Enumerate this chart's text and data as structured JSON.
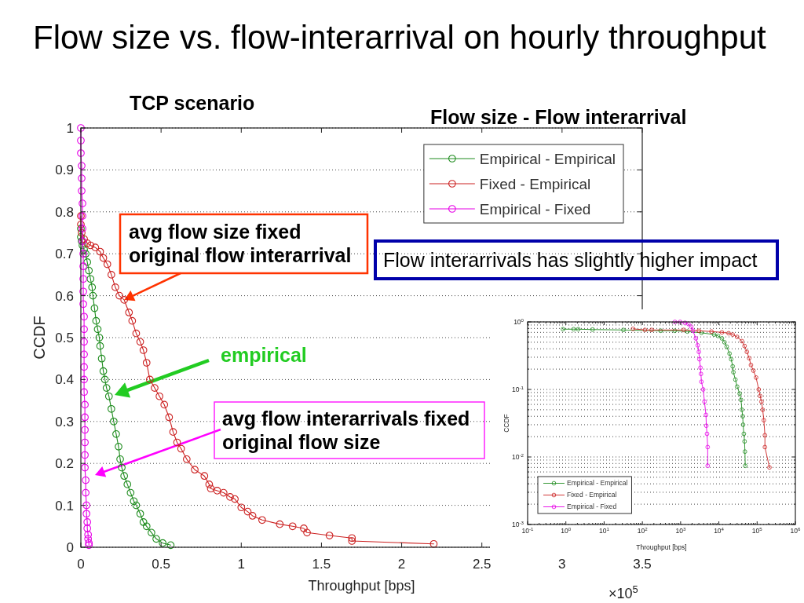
{
  "chart_data": [
    {
      "type": "line",
      "title": "Flow size vs. flow-interarrival on hourly throughput",
      "subtitle": "TCP scenario",
      "xlabel": "Throughput [bps]",
      "ylabel": "CCDF",
      "xlim": [
        0,
        3.5
      ],
      "xticks": [
        0,
        0.5,
        1,
        1.5,
        2,
        2.5,
        3,
        3.5
      ],
      "ylim": [
        0,
        1
      ],
      "yticks": [
        0,
        0.1,
        0.2,
        0.3,
        0.4,
        0.5,
        0.6,
        0.7,
        0.8,
        0.9,
        1
      ],
      "grid": "y",
      "legend": "top right",
      "marker": "circle",
      "line_style": "solid",
      "series": [
        {
          "name": "Empirical - Empirical",
          "color": "#1e8c1e",
          "x": [
            0,
            0,
            0.005,
            0.01,
            0.02,
            0.03,
            0.04,
            0.05,
            0.06,
            0.07,
            0.075,
            0.085,
            0.095,
            0.105,
            0.115,
            0.12,
            0.13,
            0.14,
            0.15,
            0.16,
            0.175,
            0.19,
            0.205,
            0.22,
            0.235,
            0.245,
            0.255,
            0.27,
            0.29,
            0.31,
            0.33,
            0.345,
            0.37,
            0.39,
            0.41,
            0.44,
            0.47,
            0.51,
            0.56
          ],
          "values": [
            0.76,
            0.74,
            0.73,
            0.72,
            0.71,
            0.7,
            0.68,
            0.66,
            0.64,
            0.62,
            0.6,
            0.57,
            0.54,
            0.52,
            0.5,
            0.48,
            0.45,
            0.42,
            0.4,
            0.38,
            0.36,
            0.33,
            0.3,
            0.27,
            0.24,
            0.21,
            0.19,
            0.17,
            0.15,
            0.13,
            0.11,
            0.1,
            0.08,
            0.06,
            0.05,
            0.035,
            0.02,
            0.01,
            0.005
          ]
        },
        {
          "name": "Fixed - Empirical",
          "color": "#cc2222",
          "x": [
            0,
            0,
            0.005,
            0.02,
            0.04,
            0.06,
            0.09,
            0.12,
            0.14,
            0.165,
            0.19,
            0.215,
            0.24,
            0.27,
            0.3,
            0.32,
            0.345,
            0.37,
            0.39,
            0.41,
            0.43,
            0.46,
            0.49,
            0.52,
            0.55,
            0.575,
            0.6,
            0.625,
            0.66,
            0.71,
            0.77,
            0.8,
            0.81,
            0.85,
            0.89,
            0.93,
            0.96,
            1,
            1.04,
            1.07,
            1.13,
            1.24,
            1.32,
            1.39,
            1.41,
            1.55,
            1.69,
            1.69,
            2.2
          ],
          "values": [
            0.79,
            0.77,
            0.75,
            0.735,
            0.725,
            0.72,
            0.715,
            0.705,
            0.69,
            0.675,
            0.65,
            0.62,
            0.6,
            0.59,
            0.56,
            0.54,
            0.51,
            0.49,
            0.47,
            0.44,
            0.4,
            0.38,
            0.36,
            0.34,
            0.31,
            0.275,
            0.25,
            0.235,
            0.21,
            0.185,
            0.17,
            0.15,
            0.14,
            0.135,
            0.13,
            0.12,
            0.115,
            0.095,
            0.085,
            0.075,
            0.065,
            0.055,
            0.05,
            0.045,
            0.035,
            0.028,
            0.022,
            0.015,
            0.008
          ]
        },
        {
          "name": "Empirical - Fixed",
          "color": "#e600e6",
          "x": [
            0,
            0,
            0,
            0.005,
            0.005,
            0.005,
            0.01,
            0.01,
            0.01,
            0.01,
            0.015,
            0.015,
            0.015,
            0.015,
            0.015,
            0.02,
            0.02,
            0.02,
            0.02,
            0.02,
            0.02,
            0.02,
            0.025,
            0.025,
            0.025,
            0.025,
            0.025,
            0.025,
            0.03,
            0.03,
            0.035,
            0.035,
            0.04,
            0.04,
            0.045,
            0.045,
            0.05,
            0.05
          ],
          "values": [
            1,
            0.97,
            0.94,
            0.91,
            0.88,
            0.85,
            0.82,
            0.79,
            0.76,
            0.73,
            0.7,
            0.67,
            0.64,
            0.61,
            0.58,
            0.55,
            0.52,
            0.49,
            0.46,
            0.43,
            0.4,
            0.37,
            0.34,
            0.31,
            0.28,
            0.25,
            0.22,
            0.19,
            0.16,
            0.13,
            0.1,
            0.08,
            0.06,
            0.045,
            0.03,
            0.02,
            0.01,
            0.005
          ]
        }
      ],
      "annotations": [
        "Flow size - Flow interarrival",
        {
          "text": "avg flow size fixed\noriginal flow interarrival",
          "x": 0.27,
          "y": 0.59
        },
        "empirical",
        "avg flow interarrivals fixed\noriginal flow size",
        "Flow interarrivals has slightly higher impact",
        "×10$^{5}$"
      ]
    },
    {
      "type": "line",
      "xlabel": "Throughput [bps]",
      "ylabel": "CCDF",
      "log": "xy",
      "xlim": [
        0.1,
        1000000
      ],
      "xticks": [
        {
          "value": 0.1,
          "label": "10$^{-1}$"
        },
        {
          "value": 0.2,
          "label": null
        },
        {
          "value": 0.3,
          "label": null
        },
        {
          "value": 0.4,
          "label": null
        },
        {
          "value": 0.5,
          "label": null
        },
        {
          "value": 0.6,
          "label": null
        },
        {
          "value": 0.7,
          "label": null
        },
        {
          "value": 0.8,
          "label": null
        },
        {
          "value": 0.9,
          "label": null
        },
        {
          "value": 1,
          "label": "10$^{0}$"
        },
        {
          "value": 2,
          "label": null
        },
        {
          "value": 3,
          "label": null
        },
        {
          "value": 4,
          "label": null
        },
        {
          "value": 5,
          "label": null
        },
        {
          "value": 6,
          "label": null
        },
        {
          "value": 7,
          "label": null
        },
        {
          "value": 8,
          "label": null
        },
        {
          "value": 9,
          "label": null
        },
        {
          "value": 10,
          "label": "10$^{1}$"
        },
        {
          "value": 20,
          "label": null
        },
        {
          "value": 30,
          "label": null
        },
        {
          "value": 40,
          "label": null
        },
        {
          "value": 50,
          "label": null
        },
        {
          "value": 60,
          "label": null
        },
        {
          "value": 70,
          "label": null
        },
        {
          "value": 80,
          "label": null
        },
        {
          "value": 90,
          "label": null
        },
        {
          "value": 100,
          "label": "10$^{2}$"
        },
        {
          "value": 200,
          "label": null
        },
        {
          "value": 300,
          "label": null
        },
        {
          "value": 400,
          "label": null
        },
        {
          "value": 500,
          "label": null
        },
        {
          "value": 600,
          "label": null
        },
        {
          "value": 700,
          "label": null
        },
        {
          "value": 800,
          "label": null
        },
        {
          "value": 900,
          "label": null
        },
        {
          "value": 1000,
          "label": "10$^{3}$"
        },
        {
          "value": 2000,
          "label": null
        },
        {
          "value": 3000,
          "label": null
        },
        {
          "value": 4000,
          "label": null
        },
        {
          "value": 5000,
          "label": null
        },
        {
          "value": 6000,
          "label": null
        },
        {
          "value": 7000,
          "label": null
        },
        {
          "value": 8000,
          "label": null
        },
        {
          "value": 9000,
          "label": null
        },
        {
          "value": 10000,
          "label": "10$^{4}$"
        },
        {
          "value": 20000,
          "label": null
        },
        {
          "value": 30000,
          "label": null
        },
        {
          "value": 40000,
          "label": null
        },
        {
          "value": 50000,
          "label": null
        },
        {
          "value": 60000,
          "label": null
        },
        {
          "value": 70000,
          "label": null
        },
        {
          "value": 80000,
          "label": null
        },
        {
          "value": 90000,
          "label": null
        },
        {
          "value": 100000,
          "label": "10$^{5}$"
        },
        {
          "value": 200000,
          "label": null
        },
        {
          "value": 300000,
          "label": null
        },
        {
          "value": 400000,
          "label": null
        },
        {
          "value": 500000,
          "label": null
        },
        {
          "value": 600000,
          "label": null
        },
        {
          "value": 700000,
          "label": null
        },
        {
          "value": 800000,
          "label": null
        },
        {
          "value": 900000,
          "label": null
        },
        {
          "value": 1000000,
          "label": "10$^{6}$"
        }
      ],
      "ylim": [
        0.001,
        1
      ],
      "yticks": [
        {
          "value": 0.001,
          "label": "10$^{-3}$"
        },
        {
          "value": 0.002,
          "label": null
        },
        {
          "value": 0.003,
          "label": null
        },
        {
          "value": 0.004,
          "label": null
        },
        {
          "value": 0.005,
          "label": null
        },
        {
          "value": 0.006,
          "label": null
        },
        {
          "value": 0.007,
          "label": null
        },
        {
          "value": 0.008,
          "label": null
        },
        {
          "value": 0.009,
          "label": null
        },
        {
          "value": 0.01,
          "label": "10$^{-2}$"
        },
        {
          "value": 0.02,
          "label": null
        },
        {
          "value": 0.03,
          "label": null
        },
        {
          "value": 0.04,
          "label": null
        },
        {
          "value": 0.05,
          "label": null
        },
        {
          "value": 0.06,
          "label": null
        },
        {
          "value": 0.07,
          "label": null
        },
        {
          "value": 0.08,
          "label": null
        },
        {
          "value": 0.09,
          "label": null
        },
        {
          "value": 0.1,
          "label": "10$^{-1}$"
        },
        {
          "value": 0.2,
          "label": null
        },
        {
          "value": 0.3,
          "label": null
        },
        {
          "value": 0.4,
          "label": null
        },
        {
          "value": 0.5,
          "label": null
        },
        {
          "value": 0.6,
          "label": null
        },
        {
          "value": 0.7,
          "label": null
        },
        {
          "value": 0.8,
          "label": null
        },
        {
          "value": 0.9,
          "label": null
        },
        {
          "value": 1,
          "label": "10$^{0}$"
        }
      ],
      "grid": "y",
      "legend": "bottom left",
      "marker": "circle",
      "line_style": "solid",
      "series": [
        {
          "name": "Empirical - Empirical",
          "color": "#1e8c1e",
          "x": [
            0.84,
            1.6,
            2.1,
            5,
            32,
            300,
            700,
            1500,
            3500,
            7500,
            9500,
            12000,
            14000,
            16000,
            19000,
            21000,
            23000,
            24000,
            27000,
            30000,
            35000,
            38000,
            40000,
            42000,
            43000,
            45000,
            47000,
            48000,
            49000
          ],
          "values": [
            0.78,
            0.78,
            0.78,
            0.77,
            0.76,
            0.74,
            0.74,
            0.72,
            0.69,
            0.65,
            0.62,
            0.57,
            0.5,
            0.43,
            0.34,
            0.28,
            0.22,
            0.18,
            0.14,
            0.11,
            0.087,
            0.07,
            0.05,
            0.04,
            0.03,
            0.022,
            0.017,
            0.012,
            0.0074
          ]
        },
        {
          "name": "Fixed - Empirical",
          "color": "#cc2222",
          "x": [
            57,
            117,
            175,
            1200,
            3000,
            6400,
            12000,
            18000,
            23000,
            30000,
            40000,
            47000,
            54000,
            62000,
            69000,
            80000,
            94000,
            110000,
            120000,
            130000,
            140000,
            150000,
            160000,
            160000,
            210000
          ],
          "values": [
            0.79,
            0.76,
            0.76,
            0.76,
            0.74,
            0.72,
            0.7,
            0.68,
            0.65,
            0.6,
            0.52,
            0.44,
            0.36,
            0.29,
            0.23,
            0.19,
            0.15,
            0.1,
            0.08,
            0.066,
            0.05,
            0.035,
            0.021,
            0.014,
            0.007
          ]
        },
        {
          "name": "Empirical - Fixed",
          "color": "#e600e6",
          "x": [
            710,
            970,
            1300,
            1600,
            1900,
            2100,
            2500,
            2800,
            3000,
            3100,
            3300,
            3400,
            3500,
            3900,
            4200,
            4600,
            4700,
            4900,
            5100,
            5100
          ],
          "values": [
            1,
            1,
            0.97,
            0.93,
            0.85,
            0.74,
            0.57,
            0.45,
            0.36,
            0.28,
            0.21,
            0.17,
            0.13,
            0.1,
            0.066,
            0.042,
            0.029,
            0.022,
            0.014,
            0.0074
          ]
        }
      ]
    }
  ]
}
